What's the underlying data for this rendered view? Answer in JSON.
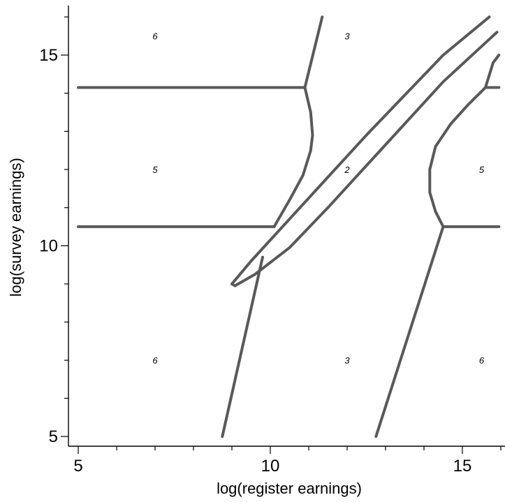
{
  "chart_data": {
    "type": "line",
    "title": "",
    "xlabel": "log(register earnings)",
    "ylabel": "log(survey earnings)",
    "xlim": [
      4.7,
      16.0
    ],
    "ylim": [
      4.7,
      16.3
    ],
    "xticks_major": [
      5,
      10,
      15
    ],
    "yticks_major": [
      5,
      10,
      15
    ],
    "xticks_minor": [
      6,
      7,
      8,
      9,
      11,
      12,
      13,
      14,
      16
    ],
    "yticks_minor": [
      6,
      7,
      8,
      9,
      11,
      12,
      13,
      14,
      16
    ],
    "grid": false,
    "line_color": "#595959",
    "series": [
      {
        "curves": [
          {
            "x": [
              5.0,
              10.1
            ],
            "y": [
              10.5,
              10.5
            ]
          },
          {
            "x": [
              5.0,
              10.9
            ],
            "y": [
              14.15,
              14.15
            ]
          },
          {
            "x": [
              10.1,
              10.5,
              10.85,
              11.05,
              11.1,
              11.05,
              10.9
            ],
            "y": [
              10.5,
              11.2,
              11.85,
              12.5,
              12.9,
              13.5,
              14.15
            ]
          },
          {
            "x": [
              10.9,
              11.35
            ],
            "y": [
              14.15,
              16.0
            ]
          },
          {
            "x": [
              8.75,
              9.8
            ],
            "y": [
              5.0,
              9.7
            ]
          },
          {
            "x": [
              9.0,
              9.5,
              10.5,
              11.5,
              12.5,
              13.5,
              14.5,
              15.7
            ],
            "y": [
              9.0,
              9.6,
              10.7,
              11.8,
              12.9,
              13.95,
              15.0,
              16.0
            ]
          },
          {
            "x": [
              15.9,
              14.5,
              13.5,
              12.5,
              11.5,
              10.5,
              9.6,
              9.08,
              9.0
            ],
            "y": [
              15.6,
              14.3,
              13.2,
              12.1,
              11.0,
              9.95,
              9.25,
              8.95,
              9.0
            ]
          },
          {
            "x": [
              12.75,
              14.5
            ],
            "y": [
              5.0,
              10.5
            ]
          },
          {
            "x": [
              14.5,
              15.95
            ],
            "y": [
              10.5,
              10.5
            ]
          },
          {
            "x": [
              14.5,
              14.3,
              14.15,
              14.15,
              14.3,
              14.7,
              15.15,
              15.6
            ],
            "y": [
              10.5,
              10.9,
              11.4,
              12.0,
              12.6,
              13.2,
              13.7,
              14.15
            ]
          },
          {
            "x": [
              15.6,
              15.95
            ],
            "y": [
              14.15,
              14.15
            ]
          },
          {
            "x": [
              15.6,
              15.8,
              15.95
            ],
            "y": [
              14.15,
              14.8,
              15.0
            ]
          }
        ]
      }
    ],
    "annotations": [
      {
        "text": "6",
        "x": 7.0,
        "y": 15.5
      },
      {
        "text": "3",
        "x": 12.0,
        "y": 15.5
      },
      {
        "text": "5",
        "x": 7.0,
        "y": 12.0
      },
      {
        "text": "2",
        "x": 12.0,
        "y": 12.0
      },
      {
        "text": "5",
        "x": 15.5,
        "y": 12.0
      },
      {
        "text": "6",
        "x": 7.0,
        "y": 7.0
      },
      {
        "text": "3",
        "x": 12.0,
        "y": 7.0
      },
      {
        "text": "6",
        "x": 15.5,
        "y": 7.0
      }
    ]
  }
}
